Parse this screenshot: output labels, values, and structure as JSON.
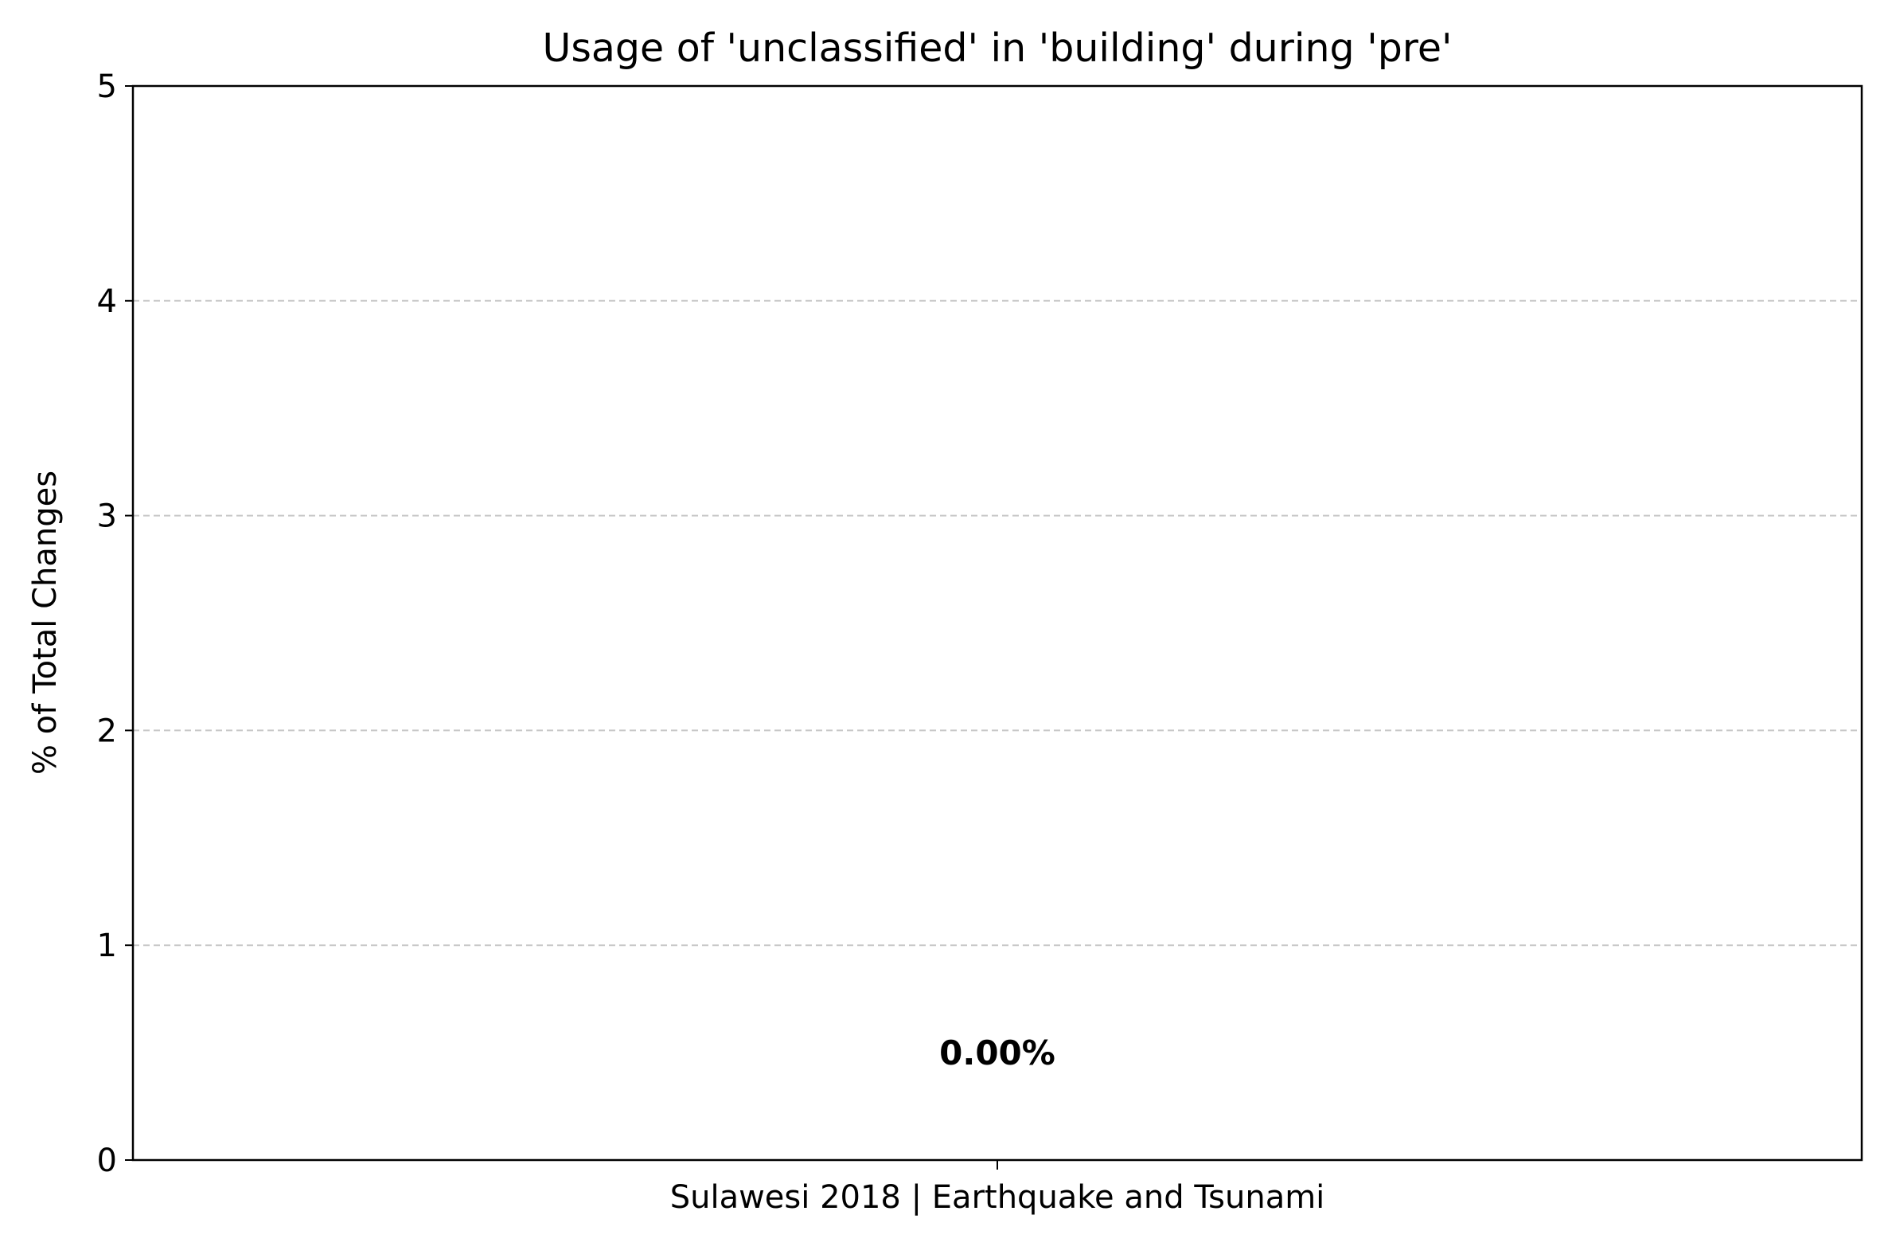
{
  "chart_data": {
    "type": "bar",
    "title": "Usage of 'unclassified' in 'building' during 'pre'",
    "xlabel": "",
    "ylabel": "% of Total Changes",
    "categories": [
      "Sulawesi 2018 | Earthquake and Tsunami"
    ],
    "values": [
      0.0
    ],
    "data_labels": [
      "0.00%"
    ],
    "ylim": [
      0,
      5
    ],
    "yticks": [
      "0",
      "1",
      "2",
      "3",
      "4",
      "5"
    ],
    "grid": "y-dashed",
    "legend": "none",
    "colors": {
      "bar": "#1f77b4",
      "grid": "#c8c8c8",
      "axis": "#000000"
    }
  }
}
